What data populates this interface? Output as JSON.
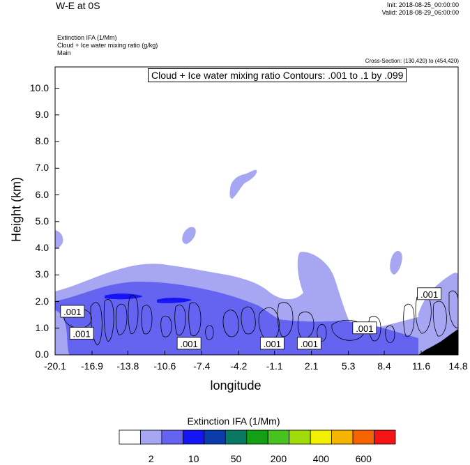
{
  "header": {
    "title": "W-E at 0S",
    "init": "Init: 2018-08-25_00:00:00",
    "valid": "Valid: 2018-08-29_06:00:00",
    "var_line1": "Extinction IFA   (1/Mm)",
    "var_line2": "Cloud + Ice water mixing ratio   (g/kg)",
    "var_line3": "Main",
    "cross_section": "Cross-Section: (130,420) to (454,420)",
    "contours_note": "Cloud + Ice water mixing ratio Contours: .001 to .1 by .099"
  },
  "chart_data": {
    "type": "heatmap",
    "title": "W-E at 0S",
    "xlabel": "longitude",
    "ylabel": "Height (km)",
    "xlim": [
      -20.1,
      14.8
    ],
    "ylim": [
      0.0,
      10.8
    ],
    "x_ticks": [
      "-20.1",
      "-16.9",
      "-13.8",
      "-10.6",
      "-7.4",
      "-4.2",
      "-1.1",
      "2.1",
      "5.3",
      "8.4",
      "11.6",
      "14.8"
    ],
    "y_ticks": [
      "0.0",
      "1.0",
      "2.0",
      "3.0",
      "4.0",
      "5.0",
      "6.0",
      "7.0",
      "8.0",
      "9.0",
      "10.0"
    ],
    "colorbar": {
      "title": "Extinction IFA  (1/Mm)",
      "colors": [
        "#ffffff",
        "#a6a6f2",
        "#6464f0",
        "#1414f5",
        "#0a3caa",
        "#0a7864",
        "#14a014",
        "#46c31e",
        "#a0dc0a",
        "#f0f000",
        "#f5b400",
        "#f56400",
        "#f51414"
      ],
      "labels": [
        "2",
        "10",
        "50",
        "200",
        "400",
        "600"
      ]
    },
    "contour_labels": [
      {
        "text": ".001",
        "x": -18.6,
        "y": 1.62
      },
      {
        "text": ".001",
        "x": -17.8,
        "y": 0.8
      },
      {
        "text": ".001",
        "x": -8.5,
        "y": 0.42
      },
      {
        "text": ".001",
        "x": -1.3,
        "y": 0.42
      },
      {
        "text": ".001",
        "x": 1.9,
        "y": 0.42
      },
      {
        "text": ".001",
        "x": 6.7,
        "y": 1.0
      },
      {
        "text": ".001",
        "x": 12.3,
        "y": 2.28
      }
    ]
  }
}
